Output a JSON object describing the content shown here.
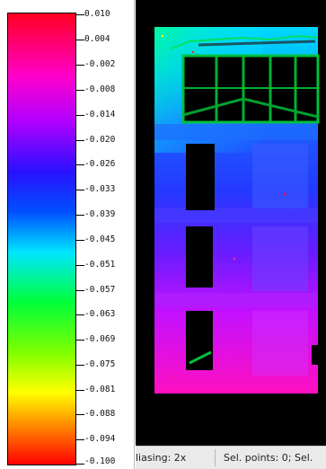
{
  "legend": {
    "ticks": [
      "0.010",
      "0.004",
      "-0.002",
      "-0.008",
      "-0.014",
      "-0.020",
      "-0.026",
      "-0.033",
      "-0.039",
      "-0.045",
      "-0.051",
      "-0.057",
      "-0.063",
      "-0.069",
      "-0.075",
      "-0.081",
      "-0.088",
      "-0.094",
      "-0.100"
    ],
    "colors": [
      "#ff0022",
      "#ff00cc",
      "#b000ff",
      "#2a10ff",
      "#0050ff",
      "#00e6ff",
      "#00ff3a",
      "#7dff00",
      "#ffff00",
      "#ff7f00",
      "#ff0000"
    ]
  },
  "view": {
    "background": "#000000"
  },
  "statusbar": {
    "antialiasing": "liasing: 2x",
    "selection": "Sel. points: 0;  Sel."
  }
}
